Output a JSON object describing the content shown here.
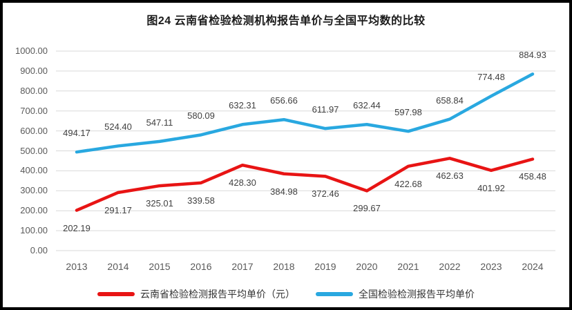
{
  "chart_data": {
    "type": "line",
    "title": "图24 云南省检验检测机构报告单价与全国平均数的比较",
    "categories": [
      "2013",
      "2014",
      "2015",
      "2016",
      "2017",
      "2018",
      "2019",
      "2020",
      "2021",
      "2022",
      "2023",
      "2024"
    ],
    "series": [
      {
        "name": "云南省检验检测报告平均单价（元）",
        "color": "#e81414",
        "label_position": "below",
        "values": [
          202.19,
          291.17,
          325.01,
          339.58,
          428.3,
          384.98,
          372.46,
          299.67,
          422.68,
          462.63,
          401.92,
          458.48
        ],
        "labels": [
          "202.19",
          "291.17",
          "325.01",
          "339.58",
          "428.30",
          "384.98",
          "372.46",
          "299.67",
          "422.68",
          "462.63",
          "401.92",
          "458.48"
        ]
      },
      {
        "name": "全国检验检测报告平均单价",
        "color": "#29a8e0",
        "label_position": "above",
        "values": [
          494.17,
          524.4,
          547.11,
          580.09,
          632.31,
          656.66,
          611.97,
          632.44,
          597.98,
          658.84,
          774.48,
          884.93
        ],
        "labels": [
          "494.17",
          "524.40",
          "547.11",
          "580.09",
          "632.31",
          "656.66",
          "611.97",
          "632.44",
          "597.98",
          "658.84",
          "774.48",
          "884.93"
        ]
      }
    ],
    "y_axis": {
      "min": 0,
      "max": 1000,
      "step": 100,
      "tick_labels": [
        "0.00",
        "100.00",
        "200.00",
        "300.00",
        "400.00",
        "500.00",
        "600.00",
        "700.00",
        "800.00",
        "900.00",
        "1000.00"
      ]
    },
    "grid": true,
    "gridline_color": "#d9d9d9",
    "legend_position": "bottom"
  }
}
